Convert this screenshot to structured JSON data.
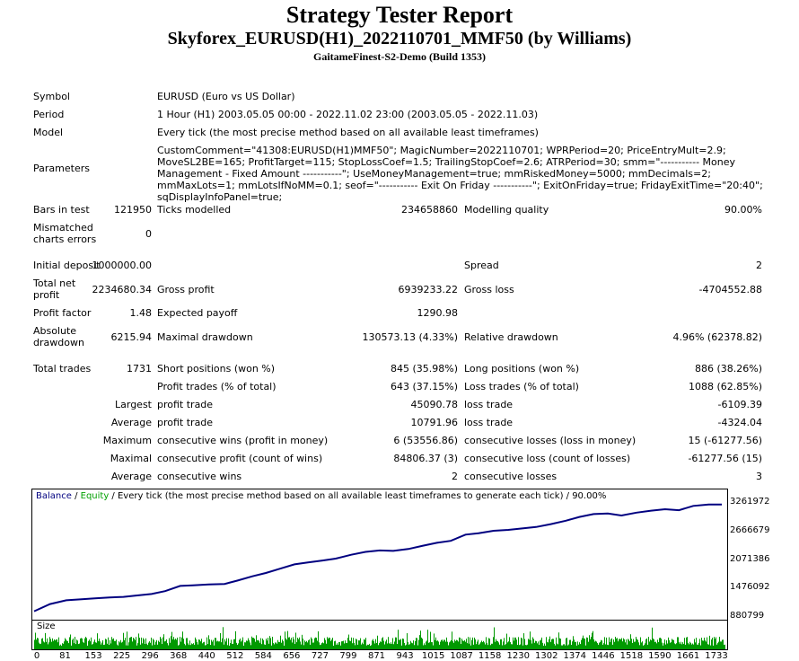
{
  "header": {
    "title": "Strategy Tester Report",
    "subtitle": "Skyforex_EURUSD(H1)_2022110701_MMF50 (by Williams)",
    "server": "GaitameFinest-S2-Demo (Build 1353)"
  },
  "info": {
    "symbol_label": "Symbol",
    "symbol_value": "EURUSD (Euro vs US Dollar)",
    "period_label": "Period",
    "period_value": "1 Hour (H1) 2003.05.05 00:00 - 2022.11.02 23:00 (2003.05.05 - 2022.11.03)",
    "model_label": "Model",
    "model_value": "Every tick (the most precise method based on all available least timeframes)",
    "params_label": "Parameters",
    "params_value": "CustomComment=\"41308:EURUSD(H1)MMF50\"; MagicNumber=2022110701; WPRPeriod=20; PriceEntryMult=2.9; MoveSL2BE=165; ProfitTarget=115; StopLossCoef=1.5; TrailingStopCoef=2.6; ATRPeriod=30; smm=\"----------- Money Management - Fixed Amount -----------\"; UseMoneyManagement=true; mmRiskedMoney=5000; mmDecimals=2; mmMaxLots=1; mmLotsIfNoMM=0.1; seof=\"----------- Exit On Friday -----------\"; ExitOnFriday=true; FridayExitTime=\"20:40\"; sqDisplayInfoPanel=true;"
  },
  "stats": {
    "bars_label": "Bars in test",
    "bars_value": "121950",
    "ticks_label": "Ticks modelled",
    "ticks_value": "234658860",
    "quality_label": "Modelling quality",
    "quality_value": "90.00%",
    "mismatch_label": "Mismatched charts errors",
    "mismatch_value": "0",
    "deposit_label": "Initial deposit",
    "deposit_value": "1000000.00",
    "spread_label": "Spread",
    "spread_value": "2",
    "netprofit_label": "Total net profit",
    "netprofit_value": "2234680.34",
    "grossprofit_label": "Gross profit",
    "grossprofit_value": "6939233.22",
    "grossloss_label": "Gross loss",
    "grossloss_value": "-4704552.88",
    "pf_label": "Profit factor",
    "pf_value": "1.48",
    "payoff_label": "Expected payoff",
    "payoff_value": "1290.98",
    "absdd_label": "Absolute drawdown",
    "absdd_value": "6215.94",
    "maxdd_label": "Maximal drawdown",
    "maxdd_value": "130573.13 (4.33%)",
    "reldd_label": "Relative drawdown",
    "reldd_value": "4.96% (62378.82)",
    "trades_label": "Total trades",
    "trades_value": "1731",
    "short_label": "Short positions (won %)",
    "short_value": "845 (35.98%)",
    "long_label": "Long positions (won %)",
    "long_value": "886 (38.26%)",
    "ptrades_label": "Profit trades (% of total)",
    "ptrades_value": "643 (37.15%)",
    "ltrades_label": "Loss trades (% of total)",
    "ltrades_value": "1088 (62.85%)",
    "largest_label": "Largest",
    "largest_pt_label": "profit trade",
    "largest_pt_value": "45090.78",
    "largest_lt_label": "loss trade",
    "largest_lt_value": "-6109.39",
    "average_label": "Average",
    "average_pt_label": "profit trade",
    "average_pt_value": "10791.96",
    "average_lt_label": "loss trade",
    "average_lt_value": "-4324.04",
    "maximum_label": "Maximum",
    "cw_money_label": "consecutive wins (profit in money)",
    "cw_money_value": "6 (53556.86)",
    "cl_money_label": "consecutive losses (loss in money)",
    "cl_money_value": "15 (-61277.56)",
    "maximal_label": "Maximal",
    "cp_count_label": "consecutive profit (count of wins)",
    "cp_count_value": "84806.37 (3)",
    "cl_count_label": "consecutive loss (count of losses)",
    "cl_count_value": "-61277.56 (15)",
    "average2_label": "Average",
    "avg_cw_label": "consecutive wins",
    "avg_cw_value": "2",
    "avg_cl_label": "consecutive losses",
    "avg_cl_value": "3"
  },
  "chart_data": {
    "type": "line",
    "legend_balance": "Balance",
    "legend_sep1": " / ",
    "legend_equity": "Equity",
    "legend_rest": " / Every tick (the most precise method based on all available least timeframes to generate each tick) / 90.00%",
    "size_label": "Size",
    "y_ticks": [
      "3261972",
      "2666679",
      "2071386",
      "1476092",
      "880799"
    ],
    "y_tick_values": [
      3261972,
      2666679,
      2071386,
      1476092,
      880799
    ],
    "x_ticks": [
      "0",
      "81",
      "153",
      "225",
      "296",
      "368",
      "440",
      "512",
      "584",
      "656",
      "727",
      "799",
      "871",
      "943",
      "1015",
      "1087",
      "1158",
      "1230",
      "1302",
      "1374",
      "1446",
      "1518",
      "1590",
      "1661",
      "1733"
    ],
    "ylim": [
      880799,
      3261972
    ],
    "xlim": [
      0,
      1733
    ],
    "balance": {
      "x": [
        0,
        40,
        81,
        120,
        153,
        190,
        225,
        260,
        296,
        330,
        368,
        400,
        440,
        480,
        512,
        550,
        584,
        620,
        656,
        690,
        727,
        760,
        799,
        835,
        871,
        905,
        943,
        980,
        1015,
        1050,
        1087,
        1120,
        1158,
        1195,
        1230,
        1265,
        1302,
        1340,
        1374,
        1410,
        1446,
        1480,
        1518,
        1555,
        1590,
        1625,
        1661,
        1700,
        1733
      ],
      "y": [
        1000000,
        1150000,
        1230000,
        1250000,
        1270000,
        1290000,
        1300000,
        1330000,
        1360000,
        1420000,
        1530000,
        1540000,
        1560000,
        1570000,
        1640000,
        1730000,
        1800000,
        1890000,
        1980000,
        2020000,
        2060000,
        2100000,
        2180000,
        2240000,
        2270000,
        2260000,
        2300000,
        2370000,
        2430000,
        2470000,
        2600000,
        2630000,
        2680000,
        2700000,
        2730000,
        2760000,
        2820000,
        2890000,
        2970000,
        3030000,
        3040000,
        3000000,
        3060000,
        3100000,
        3130000,
        3110000,
        3200000,
        3230000,
        3230000
      ]
    },
    "colors": {
      "balance": "#000080",
      "equity": "#00a000",
      "size": "#009900"
    }
  }
}
